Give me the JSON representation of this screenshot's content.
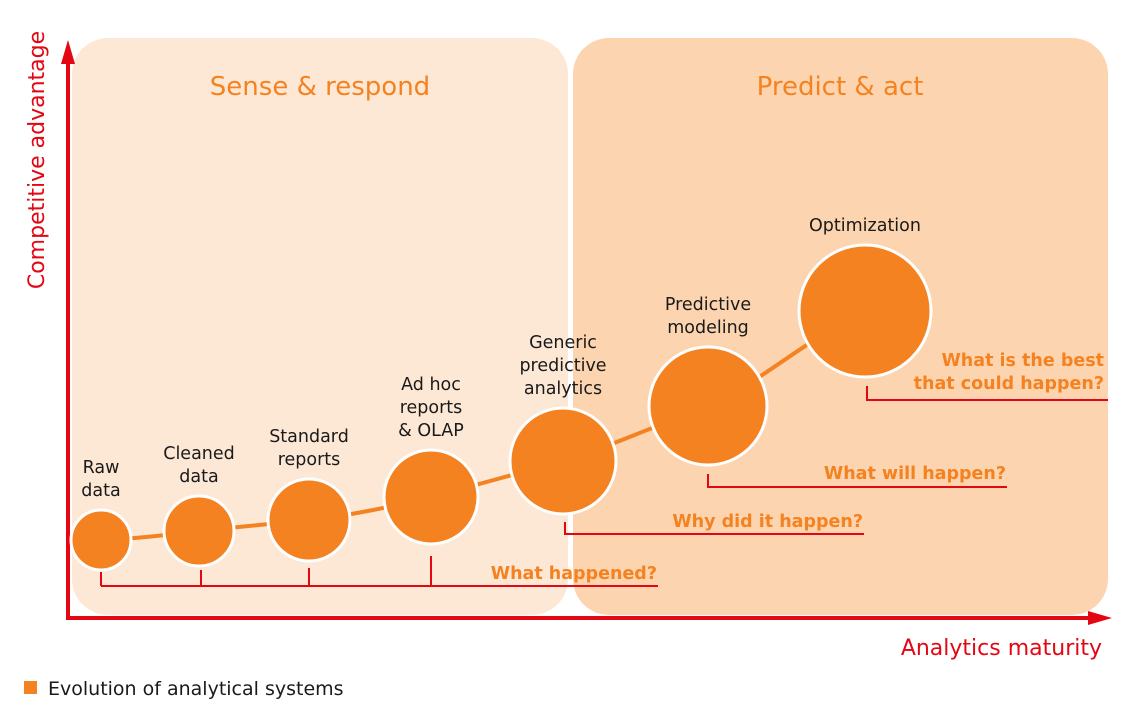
{
  "zones": {
    "left": "Sense & respond",
    "right": "Predict & act"
  },
  "axes": {
    "y": "Competitive advantage",
    "x": "Analytics maturity"
  },
  "stages": [
    {
      "lines": [
        "Raw",
        "data"
      ]
    },
    {
      "lines": [
        "Cleaned",
        "data"
      ]
    },
    {
      "lines": [
        "Standard",
        "reports"
      ]
    },
    {
      "lines": [
        "Ad hoc",
        "reports",
        "& OLAP"
      ]
    },
    {
      "lines": [
        "Generic",
        "predictive",
        "analytics"
      ]
    },
    {
      "lines": [
        "Predictive",
        "modeling"
      ]
    },
    {
      "lines": [
        "Optimization"
      ]
    }
  ],
  "questions": {
    "q1": "What happened?",
    "q2": "Why did it happen?",
    "q3": "What will happen?",
    "q4": [
      "What is the best",
      "that could happen?"
    ]
  },
  "legend": {
    "label": "Evolution of analytical systems"
  },
  "colors": {
    "accent": "#f58220",
    "axis": "#e30613",
    "left_zone": "#fde8d6",
    "right_zone": "#fcd5b0"
  }
}
